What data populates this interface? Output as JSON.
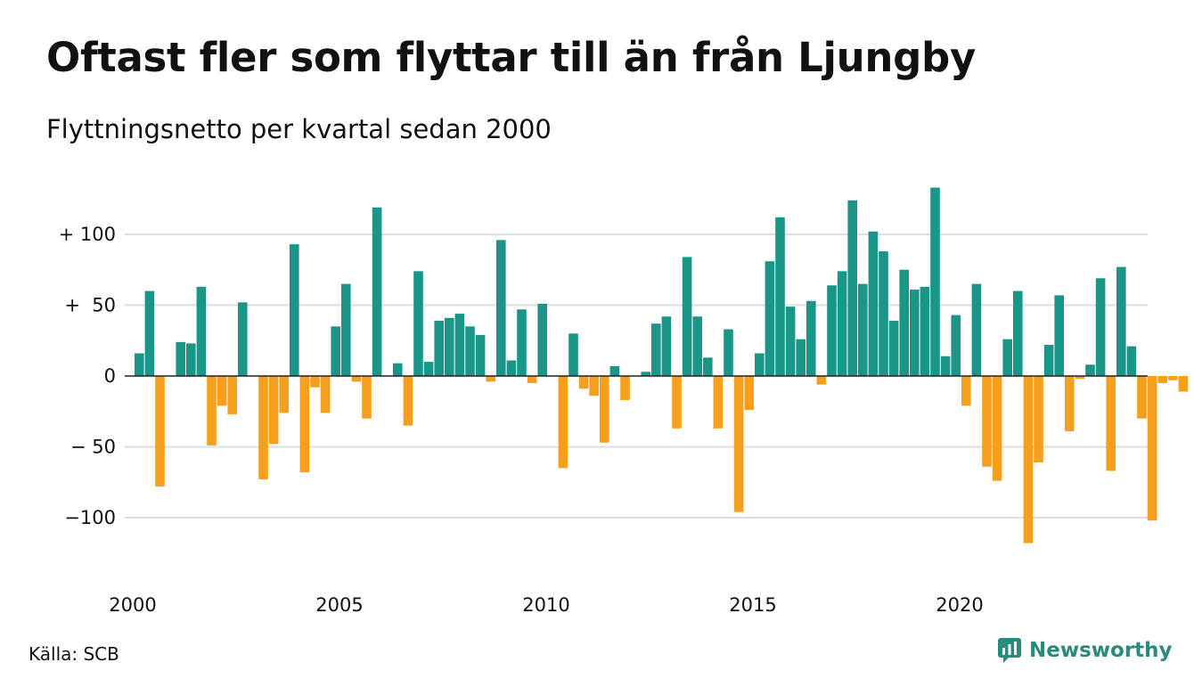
{
  "header": {
    "title": "Oftast fler som flyttar till än från Ljungby",
    "subtitle": "Flyttningsnetto per kvartal sedan 2000"
  },
  "footer": {
    "source": "Källa: SCB",
    "brand": "Newsworthy",
    "brand_icon": "newsworthy-logo-icon"
  },
  "colors": {
    "positive": "#1a9688",
    "negative": "#f59f1d",
    "grid": "#dddddd",
    "text": "#111111",
    "brand": "#2a8a7c"
  },
  "chart_data": {
    "type": "bar",
    "x_start": "2000 Q1",
    "x_tick_labels": [
      "2000",
      "2005",
      "2010",
      "2015",
      "2020"
    ],
    "y_tick_values": [
      100,
      50,
      0,
      -50,
      -100
    ],
    "y_tick_labels": [
      "+ 100",
      "+  50",
      "0",
      "− 50",
      "−100"
    ],
    "ylim": [
      -140,
      140
    ],
    "grid": true,
    "values": [
      16,
      60,
      -78,
      0,
      24,
      23,
      63,
      -49,
      -21,
      -27,
      52,
      0,
      -73,
      -48,
      -26,
      93,
      -68,
      -8,
      -26,
      35,
      65,
      -4,
      -30,
      119,
      0,
      9,
      -35,
      74,
      10,
      39,
      41,
      44,
      35,
      29,
      -4,
      96,
      11,
      47,
      -5,
      51,
      0,
      -65,
      30,
      -9,
      -14,
      -47,
      7,
      -17,
      0,
      3,
      37,
      42,
      -37,
      84,
      42,
      13,
      -37,
      33,
      -96,
      -24,
      16,
      81,
      112,
      49,
      26,
      53,
      -6,
      64,
      74,
      124,
      65,
      102,
      88,
      39,
      75,
      61,
      63,
      133,
      14,
      43,
      -21,
      65,
      -64,
      -74,
      26,
      60,
      -118,
      -61,
      22,
      57,
      -39,
      -2,
      8,
      69,
      -67,
      77,
      21,
      -30,
      -102,
      -5,
      -3,
      -11
    ]
  }
}
